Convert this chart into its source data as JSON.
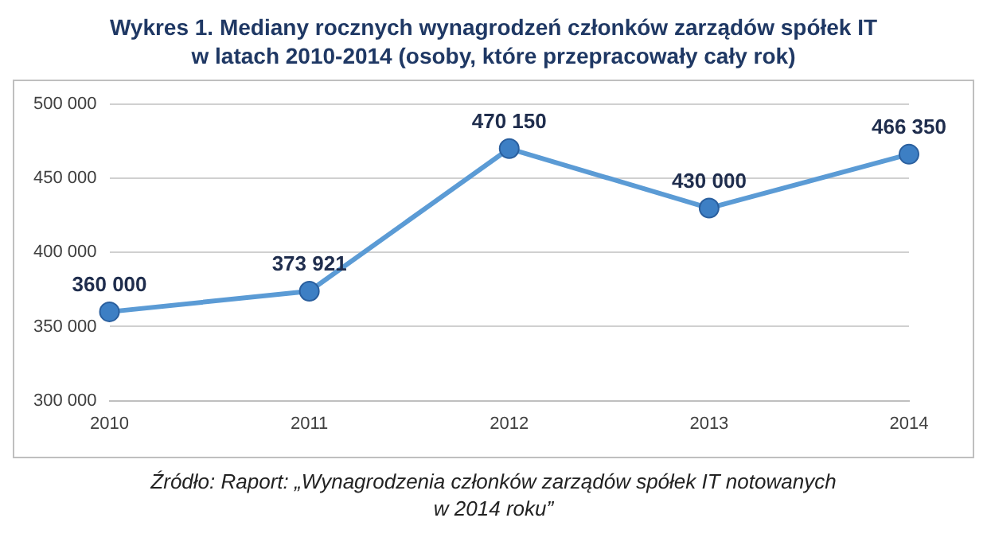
{
  "chart_data": {
    "type": "line",
    "title": "Wykres 1. Mediany rocznych wynagrodzeń członków zarządów spółek IT\nw latach 2010-2014 (osoby, które przepracowały cały rok)",
    "categories": [
      "2010",
      "2011",
      "2012",
      "2013",
      "2014"
    ],
    "series": [
      {
        "color": "#5b9bd5",
        "values": [
          360000,
          373921,
          470150,
          430000,
          466350
        ],
        "value_labels": [
          "360 000",
          "373 921",
          "470 150",
          "430 000",
          "466 350"
        ]
      }
    ],
    "ylim": [
      300000,
      500000
    ],
    "yticks": [
      {
        "value": 300000,
        "label": "300 000"
      },
      {
        "value": 350000,
        "label": "350 000"
      },
      {
        "value": 400000,
        "label": "400 000"
      },
      {
        "value": 450000,
        "label": "450 000"
      },
      {
        "value": 500000,
        "label": "500 000"
      }
    ],
    "grid": "y",
    "legend": false,
    "marker": "circle",
    "line_style": "solid",
    "annotations": [
      "Źródło: Raport: „Wynagrodzenia członków zarządów spółek IT notowanych\nw 2014 roku”"
    ]
  }
}
